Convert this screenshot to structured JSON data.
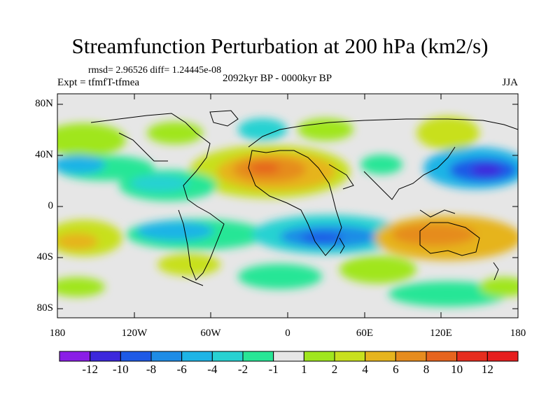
{
  "title": "Streamfunction Perturbation at 200 hPa (km2/s)",
  "stats": "rmsd= 2.96526 diff= 1.24445e-08",
  "experiment": "Expt = tfmfT-tfmea",
  "period": "2092kyr BP - 0000kyr BP",
  "season": "JJA",
  "lat_labels": [
    "80N",
    "40N",
    "0",
    "40S",
    "80S"
  ],
  "lon_labels": [
    "180",
    "120W",
    "60W",
    "0",
    "60E",
    "120E",
    "180"
  ],
  "colorbar": {
    "labels": [
      "-12",
      "-10",
      "-8",
      "-6",
      "-4",
      "-2",
      "-1",
      "1",
      "2",
      "4",
      "6",
      "8",
      "10",
      "12"
    ],
    "colors": [
      "#8a1de6",
      "#3c28dc",
      "#1e5ae6",
      "#1e8ce6",
      "#1eb4e6",
      "#28d2d2",
      "#28e696",
      "#e6e6e6",
      "#a0e61e",
      "#c8e01e",
      "#e6b41e",
      "#e68c1e",
      "#e6641e",
      "#e62d1e",
      "#e61e1e"
    ]
  }
}
